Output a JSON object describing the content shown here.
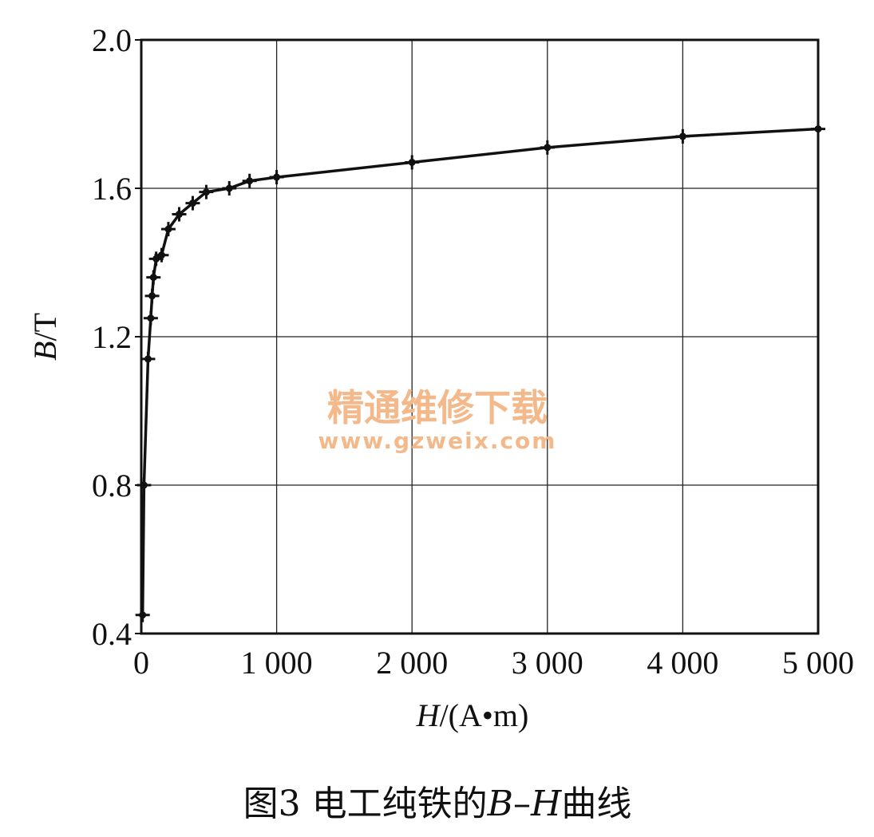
{
  "chart_data": {
    "type": "line",
    "title": "",
    "caption_parts": {
      "prefix": "图3 电工纯铁的",
      "b_symbol": "B",
      "dash": "–",
      "h_symbol": "H",
      "suffix": "曲线"
    },
    "xlabel_parts": {
      "symbol": "H",
      "unit": "/(A•m)"
    },
    "ylabel_parts": {
      "symbol": "B",
      "unit": "/T"
    },
    "xlim": [
      0,
      5000
    ],
    "ylim": [
      0.4,
      2.0
    ],
    "xticks": [
      0,
      1000,
      2000,
      3000,
      4000,
      5000
    ],
    "xtick_labels": [
      "0",
      "1 000",
      "2 000",
      "3 000",
      "4 000",
      "5 000"
    ],
    "yticks": [
      0.4,
      0.8,
      1.2,
      1.6,
      2.0
    ],
    "ytick_labels": [
      "0.4",
      "0.8",
      "1.2",
      "1.6",
      "2.0"
    ],
    "grid": true,
    "series": [
      {
        "marker": "plus",
        "color": "#111111",
        "x": [
          10,
          20,
          50,
          70,
          80,
          90,
          110,
          150,
          200,
          280,
          380,
          480,
          650,
          800,
          1000,
          2000,
          3000,
          4000,
          5000
        ],
        "y": [
          0.45,
          0.8,
          1.14,
          1.25,
          1.31,
          1.36,
          1.41,
          1.42,
          1.49,
          1.53,
          1.56,
          1.59,
          1.6,
          1.62,
          1.63,
          1.67,
          1.71,
          1.74,
          1.76
        ]
      }
    ]
  },
  "watermark": {
    "text_cn": "精通维修下载",
    "text_url": "www.gzweix.com",
    "color": "#f4b98a"
  }
}
